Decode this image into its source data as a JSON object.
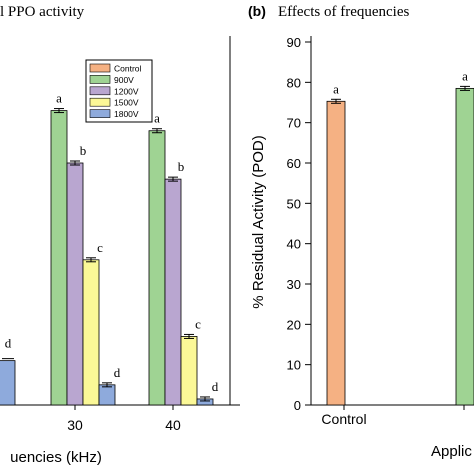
{
  "chart_data": [
    {
      "panel": "a",
      "type": "bar",
      "title": "l PPO activity",
      "xlabel": "uencies (kHz)",
      "categories": [
        "30",
        "40"
      ],
      "partial_category_at_left": true,
      "legend_position": "top-right",
      "series": [
        {
          "name": "Control",
          "color": "#f5b183",
          "values": [
            null,
            null
          ],
          "letters": [
            "",
            ""
          ]
        },
        {
          "name": "900V",
          "color": "#9fd393",
          "values": [
            73,
            68
          ],
          "letters": [
            "a",
            "a"
          ]
        },
        {
          "name": "1200V",
          "color": "#b9a6d0",
          "values": [
            60,
            56
          ],
          "letters": [
            "b",
            "b"
          ]
        },
        {
          "name": "1500V",
          "color": "#fbf897",
          "values": [
            36,
            17
          ],
          "letters": [
            "c",
            "c"
          ]
        },
        {
          "name": "1800V",
          "color": "#8eaadc",
          "values": [
            5,
            1.5
          ],
          "letters": [
            "d",
            "d"
          ]
        }
      ],
      "partial_left": {
        "series": "1800V",
        "value": 11,
        "letter": "d"
      },
      "ylim": [
        0,
        90
      ]
    },
    {
      "panel": "b",
      "type": "bar",
      "panel_label": "(b)",
      "title": "Effects of frequencies",
      "ylabel": "% Residual Activity (POD)",
      "xlabel": "Applic",
      "categories": [
        "Control",
        ""
      ],
      "values": [
        75.3,
        78.5
      ],
      "colors": [
        "#f5b183",
        "#9fd393"
      ],
      "letters": [
        "a",
        "a"
      ],
      "ylim": [
        0,
        90
      ],
      "yticks": [
        0,
        10,
        20,
        30,
        40,
        50,
        60,
        70,
        80,
        90
      ]
    }
  ]
}
